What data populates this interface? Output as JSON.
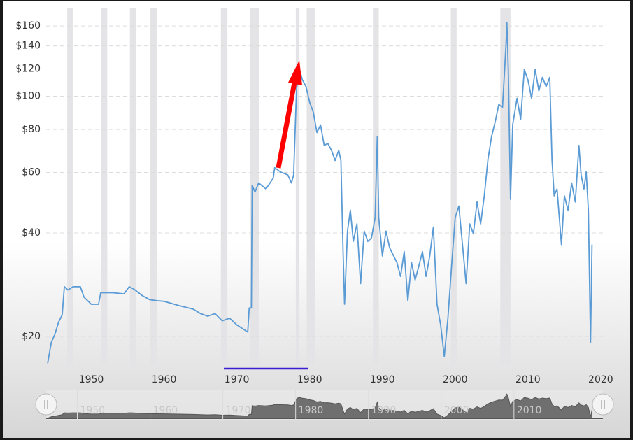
{
  "chart_data": {
    "type": "line",
    "log_scale": true,
    "grid": true,
    "color": "#5b9bd5",
    "xlim": [
      1943.8,
      2020.3
    ],
    "xticks": [
      1950,
      1960,
      1970,
      1980,
      1990,
      2000,
      2010,
      2020
    ],
    "ylim": [
      16.5,
      180
    ],
    "yticks": [
      {
        "value": 20,
        "label": "$20"
      },
      {
        "value": 40,
        "label": "$40"
      },
      {
        "value": 60,
        "label": "$60"
      },
      {
        "value": 80,
        "label": "$80"
      },
      {
        "value": 100,
        "label": "$100"
      },
      {
        "value": 120,
        "label": "$120"
      },
      {
        "value": 140,
        "label": "$140"
      },
      {
        "value": 160,
        "label": "$160"
      }
    ],
    "recessions": [
      [
        1946.7,
        1947.5
      ],
      [
        1951.3,
        1952.2
      ],
      [
        1955.3,
        1956.2
      ],
      [
        1958.1,
        1959.0
      ],
      [
        1967.8,
        1968.7
      ],
      [
        1971.8,
        1973.1
      ],
      [
        1978.1,
        1978.6
      ],
      [
        1979.6,
        1980.7
      ],
      [
        1988.7,
        1989.5
      ],
      [
        1999.4,
        2000.2
      ],
      [
        2006.2,
        2007.6
      ]
    ],
    "navigator_labels": [
      "1950",
      "1960",
      "1970",
      "1980",
      "1990",
      "2000",
      "2010"
    ],
    "x": [
      1944.0,
      1944.5,
      1945.0,
      1945.5,
      1946.0,
      1946.3,
      1946.8,
      1947.5,
      1948.5,
      1949.0,
      1949.5,
      1950.0,
      1951.0,
      1951.3,
      1952.0,
      1953.0,
      1954.5,
      1955.2,
      1955.8,
      1956.5,
      1957.0,
      1958.0,
      1959.0,
      1960.0,
      1962.0,
      1964.0,
      1965.0,
      1966.0,
      1967.0,
      1968.0,
      1969.0,
      1970.0,
      1971.5,
      1971.7,
      1972.0,
      1972.1,
      1972.5,
      1973.0,
      1974.0,
      1975.0,
      1975.2,
      1976.0,
      1977.0,
      1977.5,
      1977.8,
      1978.2,
      1978.5,
      1979.0,
      1979.5,
      1980.0,
      1980.5,
      1981.0,
      1981.5,
      1982.0,
      1982.5,
      1983.0,
      1983.5,
      1984.0,
      1984.3,
      1984.6,
      1984.8,
      1985.2,
      1985.6,
      1986.0,
      1986.5,
      1987.0,
      1987.5,
      1988.0,
      1988.5,
      1989.0,
      1989.3,
      1989.5,
      1990.0,
      1990.5,
      1991.0,
      1992.0,
      1992.5,
      1993.0,
      1993.5,
      1994.0,
      1994.5,
      1995.0,
      1995.5,
      1996.0,
      1996.5,
      1997.0,
      1997.5,
      1998.0,
      1998.5,
      1999.0,
      1999.5,
      2000.0,
      2000.5,
      2001.0,
      2001.5,
      2002.0,
      2002.5,
      2003.0,
      2003.5,
      2004.0,
      2004.5,
      2005.0,
      2005.5,
      2006.0,
      2006.5,
      2006.8,
      2007.0,
      2007.1,
      2007.3,
      2007.6,
      2007.9,
      2008.5,
      2009.0,
      2009.5,
      2010.0,
      2010.5,
      2011.0,
      2011.5,
      2012.0,
      2012.5,
      2013.0,
      2013.3,
      2013.6,
      2014.0,
      2014.6,
      2015.0,
      2015.5,
      2016.0,
      2016.5,
      2017.0,
      2017.3,
      2017.7,
      2018.0,
      2018.3,
      2018.6,
      2018.8
    ],
    "values": [
      16.7,
      19.2,
      20.3,
      22.0,
      23.1,
      27.9,
      27.3,
      27.9,
      27.9,
      26.0,
      25.4,
      24.8,
      24.8,
      26.8,
      26.8,
      26.8,
      26.6,
      27.9,
      27.5,
      26.8,
      26.3,
      25.6,
      25.4,
      25.3,
      24.6,
      24.0,
      23.3,
      22.9,
      23.3,
      22.2,
      22.6,
      21.6,
      20.6,
      24.2,
      24.2,
      55.0,
      52.6,
      55.9,
      53.7,
      57.7,
      61.9,
      60.2,
      59.0,
      55.9,
      59.0,
      103.7,
      121.8,
      111.6,
      106.6,
      96.0,
      89.9,
      78.4,
      82.5,
      71.9,
      72.9,
      69.6,
      65.0,
      69.6,
      65.0,
      35.3,
      24.8,
      40.5,
      46.6,
      37.8,
      42.5,
      28.5,
      40.5,
      37.8,
      38.7,
      44.3,
      76.3,
      44.3,
      34.3,
      40.5,
      36.2,
      32.8,
      29.9,
      35.3,
      25.4,
      32.8,
      29.2,
      32.0,
      35.3,
      29.9,
      34.3,
      41.6,
      24.8,
      21.6,
      17.5,
      22.6,
      32.0,
      44.3,
      47.9,
      37.0,
      28.5,
      42.5,
      39.8,
      49.2,
      42.5,
      51.3,
      65.3,
      76.3,
      84.2,
      94.7,
      92.6,
      119.5,
      143.6,
      163.7,
      119.5,
      50.1,
      82.5,
      98.6,
      85.7,
      119.5,
      111.6,
      98.6,
      119.5,
      103.7,
      113.4,
      106.6,
      113.4,
      65.3,
      51.3,
      53.7,
      37.0,
      51.3,
      46.6,
      55.9,
      49.2,
      71.9,
      59.0,
      53.7,
      60.2,
      46.6,
      19.2,
      37.0
    ]
  }
}
